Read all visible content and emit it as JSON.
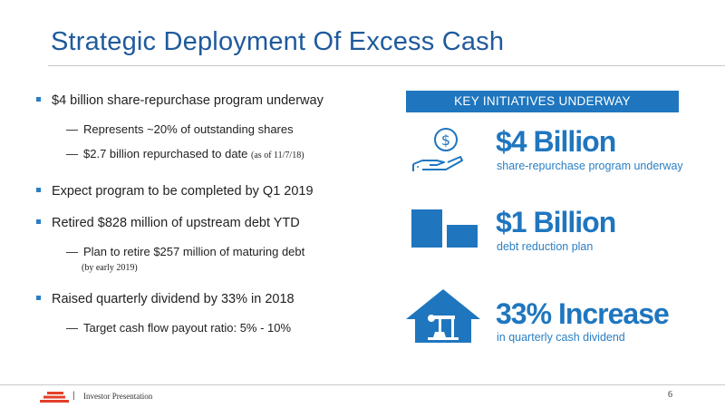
{
  "title": "Strategic Deployment Of Excess Cash",
  "bullets": [
    {
      "text": "$4 billion share-repurchase program underway",
      "subs": [
        {
          "text": "Represents ~20% of outstanding shares"
        },
        {
          "text": "$2.7 billion repurchased to date",
          "note": "(as of 11/7/18)"
        }
      ]
    },
    {
      "text": "Expect program to be completed by Q1 2019"
    },
    {
      "text": "Retired $828 million of upstream debt YTD",
      "subs": [
        {
          "text": "Plan to retire $257 million of maturing debt",
          "note_line": "(by early 2019)"
        }
      ]
    },
    {
      "text": "Raised quarterly dividend by 33% in 2018",
      "subs": [
        {
          "text": "Target cash flow payout ratio: 5% - 10%"
        }
      ]
    }
  ],
  "initiatives": {
    "banner": "KEY INITIATIVES UNDERWAY",
    "items": [
      {
        "headline": "$4 Billion",
        "caption": "share-repurchase program underway",
        "icon": "hand-dollar-icon"
      },
      {
        "headline": "$1 Billion",
        "caption": "debt reduction plan",
        "icon": "bar-decrease-icon"
      },
      {
        "headline": "33% Increase",
        "caption": "in quarterly cash dividend",
        "icon": "house-oil-pump-icon"
      }
    ]
  },
  "footer": {
    "separator": "|",
    "label": "Investor Presentation",
    "page": "6"
  },
  "colors": {
    "accent": "#1f76bf",
    "title": "#1f5a9c",
    "logo": "#e2402a"
  }
}
